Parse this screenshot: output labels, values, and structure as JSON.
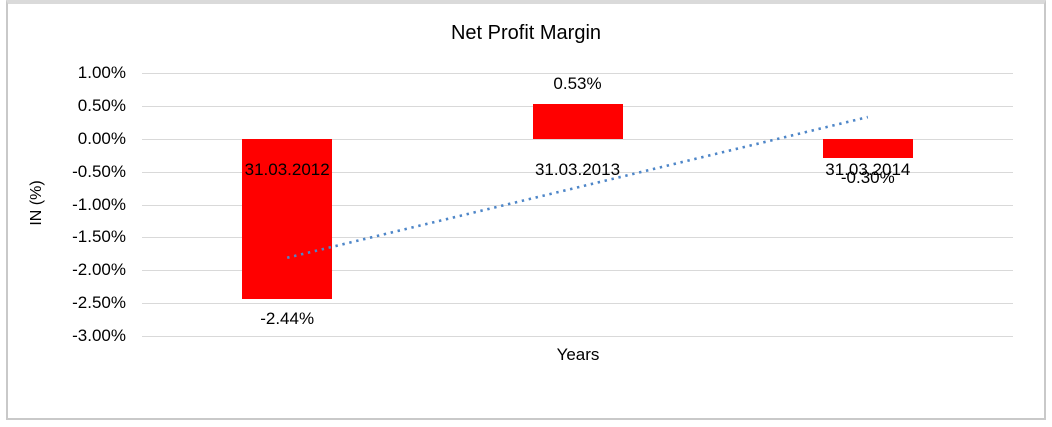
{
  "chart_data": {
    "type": "bar",
    "title": "Net Profit Margin",
    "xlabel": "Years",
    "ylabel": "IN (%)",
    "categories": [
      "31.03.2012",
      "31.03.2013",
      "31.03.2014"
    ],
    "values": [
      -2.44,
      0.53,
      -0.3
    ],
    "data_labels": [
      "-2.44%",
      "0.53%",
      "-0.30%"
    ],
    "ylim": [
      -3,
      1
    ],
    "ytick_step": 0.5,
    "ytick_labels": [
      "1.00%",
      "0.50%",
      "0.00%",
      "-0.50%",
      "-1.00%",
      "-1.50%",
      "-2.00%",
      "-2.50%",
      "-3.00%"
    ],
    "grid": true,
    "legend": "none",
    "bar_color": "#FF0000",
    "gridline_color": "#D9D9D9",
    "text_color": "#000000",
    "trendline": {
      "type": "linear",
      "style": "dotted",
      "color": "#4E86C8",
      "start_value": -1.81,
      "end_value": 0.33
    }
  }
}
